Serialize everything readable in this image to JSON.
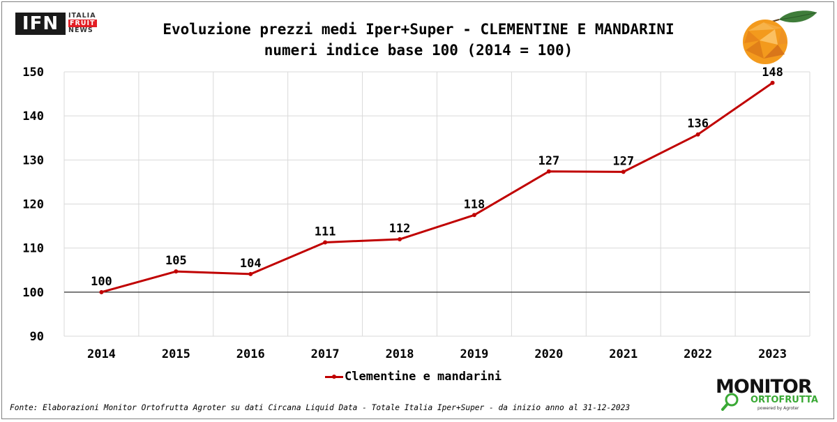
{
  "logo": {
    "ifn_text": "IFN",
    "side_line1": "ITALIA",
    "side_line2": "FRUIT",
    "side_line3": "NEWS"
  },
  "title": {
    "line1": "Evoluzione prezzi medi Iper+Super - CLEMENTINE E MANDARINI",
    "line2": "numeri indice base 100 (2014 = 100)"
  },
  "footer": {
    "source": "Fonte: Elaborazioni Monitor Ortofrutta Agroter su dati Circana Liquid Data - Totale Italia Iper+Super -  da inizio anno al 31-12-2023",
    "monitor_word": "MONITOR",
    "monitor_sub": "ORTOFRUTTA",
    "monitor_small": "powered by Agroter"
  },
  "chart_data": {
    "type": "line",
    "categories": [
      "2014",
      "2015",
      "2016",
      "2017",
      "2018",
      "2019",
      "2020",
      "2021",
      "2022",
      "2023"
    ],
    "series": [
      {
        "name": "Clementine e mandarini",
        "values": [
          100,
          104.7,
          104.1,
          111.3,
          112.0,
          117.5,
          127.4,
          127.3,
          135.8,
          147.5
        ],
        "labels": [
          "100",
          "105",
          "104",
          "111",
          "112",
          "118",
          "127",
          "127",
          "136",
          "148"
        ],
        "color": "#c00000"
      }
    ],
    "ylim": [
      90,
      150
    ],
    "yticks": [
      "90",
      "100",
      "110",
      "120",
      "130",
      "140",
      "150"
    ],
    "grid": true,
    "reference_line": 100,
    "legend": "bottom",
    "xlabel": "",
    "ylabel": ""
  },
  "colors": {
    "series": "#c00000",
    "grid": "#d9d9d9",
    "reference": "#000000",
    "brand_red": "#e31e24",
    "brand_green": "#3aa935"
  }
}
